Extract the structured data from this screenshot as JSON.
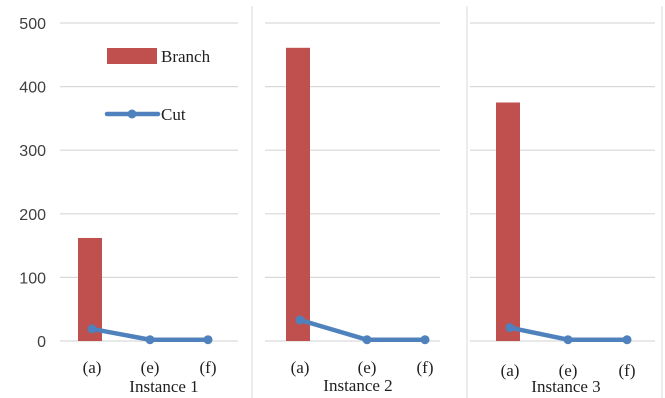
{
  "chart_data": {
    "type": "bar",
    "ylim": [
      0,
      500
    ],
    "yticks": [
      "0",
      "100",
      "200",
      "300",
      "400",
      "500"
    ],
    "categories": [
      "(a)",
      "(e)",
      "(f)"
    ],
    "grid": true,
    "legend": {
      "placement": "top-left (inside Instance 1 panel)",
      "entries": [
        {
          "name": "Branch",
          "kind": "bar",
          "color": "#c0504d"
        },
        {
          "name": "Cut",
          "kind": "line",
          "color": "#4f81bd"
        }
      ]
    },
    "panels": [
      {
        "title": "Instance 1",
        "branch": [
          162,
          null,
          null
        ],
        "cut": [
          19,
          2,
          2
        ]
      },
      {
        "title": "Instance 2",
        "branch": [
          461,
          null,
          null
        ],
        "cut": [
          33,
          2,
          2
        ]
      },
      {
        "title": "Instance 3",
        "branch": [
          375,
          null,
          null
        ],
        "cut": [
          21,
          2,
          2
        ]
      }
    ]
  }
}
